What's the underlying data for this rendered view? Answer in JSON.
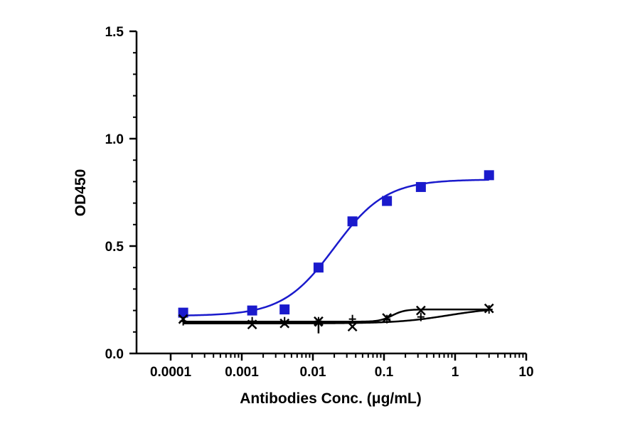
{
  "chart_data": {
    "type": "scatter",
    "xscale": "log",
    "xlabel": "Antibodies Conc. (μg/mL)",
    "ylabel": "OD450",
    "xlim": [
      0.0001,
      10
    ],
    "ylim": [
      0,
      1.5
    ],
    "x_tick_values": [
      0.0001,
      0.001,
      0.01,
      0.1,
      1,
      10
    ],
    "x_tick_labels": [
      "0.0001",
      "0.001",
      "0.01",
      "0.1",
      "1",
      "10"
    ],
    "y_tick_values": [
      0,
      0.5,
      1.0,
      1.5
    ],
    "y_tick_labels": [
      "0.0",
      "0.5",
      "1.0",
      "1.5"
    ],
    "grid": false,
    "series": [
      {
        "marker": "square",
        "color": "#1a1acc",
        "points": [
          {
            "x": 0.00015,
            "y": 0.19
          },
          {
            "x": 0.0014,
            "y": 0.2
          },
          {
            "x": 0.004,
            "y": 0.205
          },
          {
            "x": 0.012,
            "y": 0.4
          },
          {
            "x": 0.036,
            "y": 0.615
          },
          {
            "x": 0.11,
            "y": 0.71
          },
          {
            "x": 0.33,
            "y": 0.775
          },
          {
            "x": 3.0,
            "y": 0.83
          }
        ],
        "fit": {
          "model": "4PL",
          "bottom": 0.175,
          "top": 0.81,
          "ec50": 0.02,
          "hill": 1.2
        }
      },
      {
        "marker": "x",
        "color": "#000000",
        "points": [
          {
            "x": 0.00015,
            "y": 0.16
          },
          {
            "x": 0.0014,
            "y": 0.135
          },
          {
            "x": 0.004,
            "y": 0.14
          },
          {
            "x": 0.012,
            "y": 0.15
          },
          {
            "x": 0.036,
            "y": 0.125
          },
          {
            "x": 0.11,
            "y": 0.165
          },
          {
            "x": 0.33,
            "y": 0.2
          },
          {
            "x": 3.0,
            "y": 0.21
          }
        ],
        "fit": {
          "model": "4PL",
          "bottom": 0.148,
          "top": 0.205,
          "ec50": 0.13,
          "hill": 5
        }
      },
      {
        "marker": "arrow",
        "color": "#000000",
        "points": [
          {
            "x": 0.012,
            "y": 0.12
          }
        ]
      },
      {
        "marker": "plus",
        "color": "#000000",
        "points": [
          {
            "x": 0.00015,
            "y": 0.15
          },
          {
            "x": 0.0014,
            "y": 0.15
          },
          {
            "x": 0.004,
            "y": 0.15
          },
          {
            "x": 0.012,
            "y": 0.15
          },
          {
            "x": 0.036,
            "y": 0.16
          },
          {
            "x": 0.11,
            "y": 0.16
          },
          {
            "x": 0.33,
            "y": 0.17
          },
          {
            "x": 3.0,
            "y": 0.205
          }
        ],
        "fit": {
          "model": "4PL",
          "bottom": 0.14,
          "top": 0.215,
          "ec50": 0.8,
          "hill": 1.2
        }
      }
    ]
  }
}
